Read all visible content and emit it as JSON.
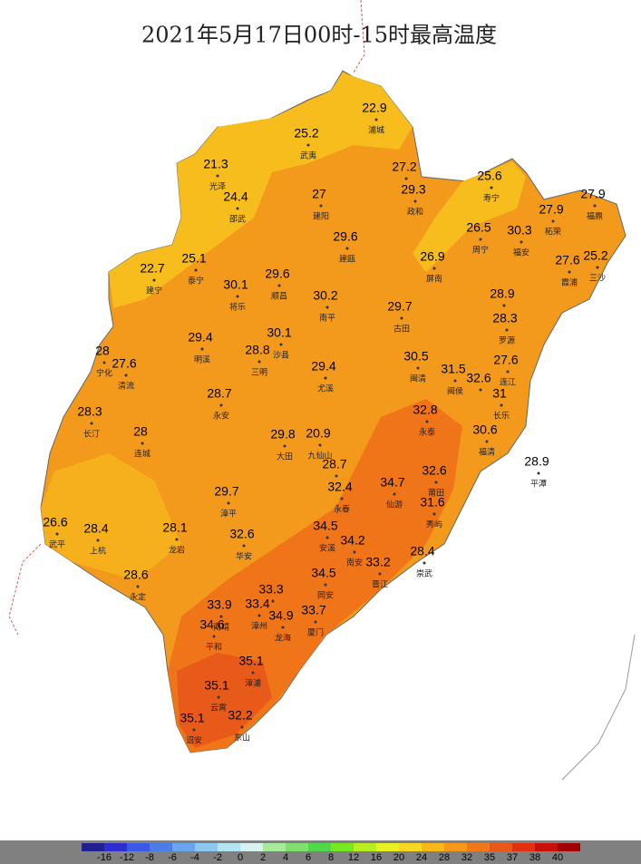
{
  "title": "2021年5月17日00时-15时最高温度",
  "stations": [
    {
      "name": "浦城",
      "value": 22.9
    },
    {
      "name": "武夷",
      "value": 25.2
    },
    {
      "name": "光泽",
      "value": 21.3
    },
    {
      "name": "邵武",
      "value": 24.4
    },
    {
      "name": null,
      "value": 27.2
    },
    {
      "name": "建阳",
      "value": 27
    },
    {
      "name": "政和",
      "value": 29.3
    },
    {
      "name": "寿宁",
      "value": 25.6
    },
    {
      "name": "柘荣",
      "value": 27.9
    },
    {
      "name": "福鼎",
      "value": 27.9
    },
    {
      "name": "周宁",
      "value": 26.5
    },
    {
      "name": "福安",
      "value": 30.3
    },
    {
      "name": "建瓯",
      "value": 29.6
    },
    {
      "name": "屏南",
      "value": 26.9
    },
    {
      "name": "霞浦",
      "value": 27.6
    },
    {
      "name": "三沙",
      "value": 25.2
    },
    {
      "name": "泰宁",
      "value": 25.1
    },
    {
      "name": "建宁",
      "value": 22.7
    },
    {
      "name": "顺昌",
      "value": 29.6
    },
    {
      "name": "将乐",
      "value": 30.1
    },
    {
      "name": "南平",
      "value": 30.2
    },
    {
      "name": "古田",
      "value": 29.7
    },
    {
      "name": null,
      "value": 28.9
    },
    {
      "name": "罗源",
      "value": 28.3
    },
    {
      "name": "明溪",
      "value": 29.4
    },
    {
      "name": "沙县",
      "value": 30.1
    },
    {
      "name": "三明",
      "value": 28.8
    },
    {
      "name": "宁化",
      "value": 28
    },
    {
      "name": "清流",
      "value": 27.6
    },
    {
      "name": "尤溪",
      "value": 29.4
    },
    {
      "name": "闽清",
      "value": 30.5
    },
    {
      "name": "闽侯",
      "value": 31.5
    },
    {
      "name": null,
      "value": 32.6
    },
    {
      "name": "连江",
      "value": 27.6
    },
    {
      "name": "长乐",
      "value": 31
    },
    {
      "name": "永安",
      "value": 28.7
    },
    {
      "name": "长汀",
      "value": 28.3
    },
    {
      "name": "连城",
      "value": 28
    },
    {
      "name": "大田",
      "value": 29.8
    },
    {
      "name": "九仙山",
      "value": 20.9
    },
    {
      "name": "永泰",
      "value": 32.8
    },
    {
      "name": "福清",
      "value": 30.6
    },
    {
      "name": "平潭",
      "value": 28.9
    },
    {
      "name": null,
      "value": 28.7
    },
    {
      "name": "永春",
      "value": 32.4
    },
    {
      "name": "仙游",
      "value": 34.7
    },
    {
      "name": "莆田",
      "value": 32.6
    },
    {
      "name": "秀屿",
      "value": 31.6
    },
    {
      "name": "漳平",
      "value": 29.7
    },
    {
      "name": "武平",
      "value": 26.6
    },
    {
      "name": "上杭",
      "value": 28.4
    },
    {
      "name": "龙岩",
      "value": 28.1
    },
    {
      "name": "华安",
      "value": 32.6
    },
    {
      "name": "安溪",
      "value": 34.5
    },
    {
      "name": "南安",
      "value": 34.2
    },
    {
      "name": "崇武",
      "value": 28.4
    },
    {
      "name": "晋江",
      "value": 33.2
    },
    {
      "name": "永定",
      "value": 28.6
    },
    {
      "name": null,
      "value": 33.3
    },
    {
      "name": "同安",
      "value": 34.5
    },
    {
      "name": "厦门",
      "value": 33.7
    },
    {
      "name": "南靖",
      "value": 33.9
    },
    {
      "name": "漳州",
      "value": 33.4
    },
    {
      "name": "龙海",
      "value": 34.9
    },
    {
      "name": "平和",
      "value": 34.6
    },
    {
      "name": "漳浦",
      "value": 35.1
    },
    {
      "name": "云霄",
      "value": 35.1
    },
    {
      "name": "诏安",
      "value": 35.1
    },
    {
      "name": "东山",
      "value": 32.2
    }
  ],
  "legend": {
    "colors": [
      "#20208f",
      "#2d2dd0",
      "#3a5ae6",
      "#4a7ee6",
      "#69a5ea",
      "#8cc8f0",
      "#b2e4f2",
      "#d8f2f2",
      "#a6ea9a",
      "#7ee06a",
      "#4ed84a",
      "#76e820",
      "#b8ee20",
      "#e8f020",
      "#f8d820",
      "#f8b818",
      "#f89818",
      "#f07818",
      "#e85818",
      "#e03010",
      "#c81008",
      "#a00000"
    ],
    "labels": [
      -16,
      -12,
      -8,
      -6,
      -4,
      -2,
      0,
      2,
      4,
      6,
      8,
      12,
      16,
      20,
      24,
      28,
      32,
      35,
      37,
      38,
      40
    ]
  }
}
